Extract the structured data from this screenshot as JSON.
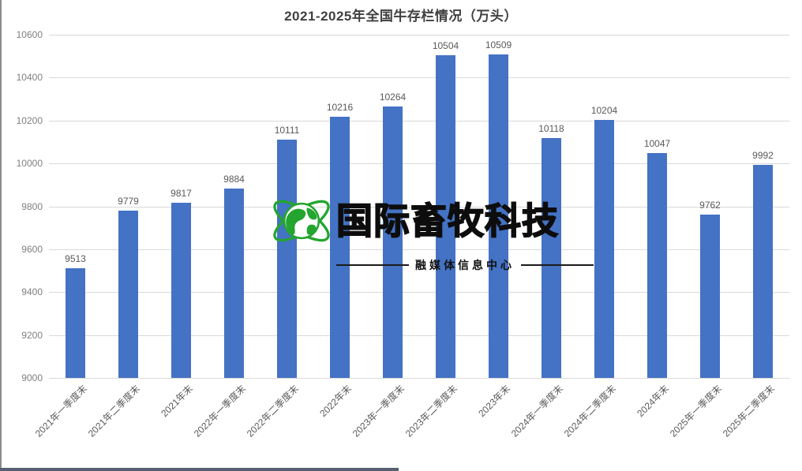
{
  "page": {
    "title": "2021-2025年全国牛存栏情况（万头）"
  },
  "chart_data": {
    "type": "bar",
    "title": "2021-2025年全国牛存栏情况（万头）",
    "categories": [
      "2021年一季度末",
      "2021年二季度末",
      "2021年末",
      "2022年一季度末",
      "2022年二季度末",
      "2022年末",
      "2023年一季度末",
      "2023年二季度末",
      "2023年末",
      "2024年一季度末",
      "2024年二季度末",
      "2024年末",
      "2025年一季度末",
      "2025年二季度末"
    ],
    "values": [
      9513,
      9779,
      9817,
      9884,
      10111,
      10216,
      10264,
      10504,
      10509,
      10118,
      10204,
      10047,
      9762,
      9992
    ],
    "xlabel": "",
    "ylabel": "",
    "ylim": [
      9000,
      10600
    ],
    "yticks": [
      10600,
      10400,
      10200,
      10000,
      9800,
      9600,
      9400,
      9200,
      9000
    ],
    "grid": "horizontal",
    "legend": "none",
    "bar_color": "#4472c4",
    "gridline_color": "#d9d9d9",
    "value_labels_shown": true
  },
  "watermark": {
    "logo": "globe-orbit-icon",
    "brand": "国际畜牧科技",
    "subtitle": "融媒体信息中心",
    "logo_color": "#23a52f"
  },
  "colors": {
    "bar": "#4472c4",
    "gridline": "#d9d9d9",
    "axis_text": "#808080",
    "label_text": "#595959",
    "title_text": "#404040",
    "left_border": "#8c8c8c",
    "bottom_strip": "#556070"
  }
}
